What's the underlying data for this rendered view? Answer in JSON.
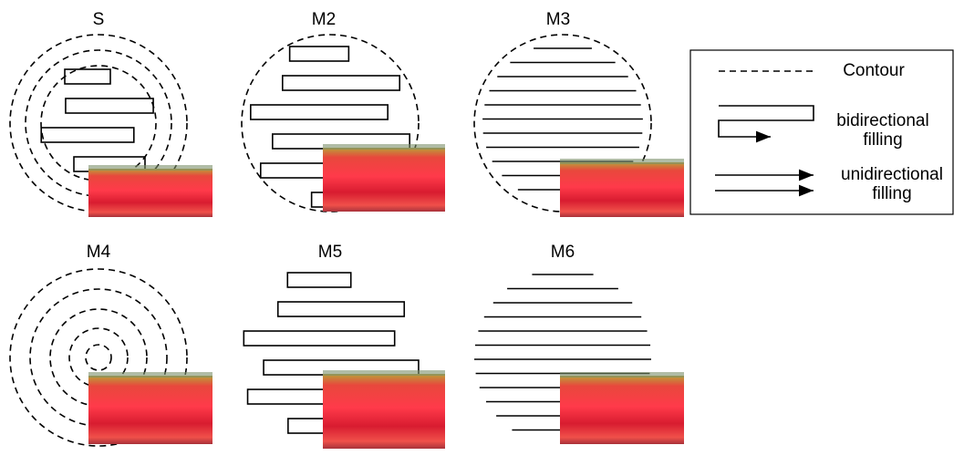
{
  "panels": [
    {
      "label": "S"
    },
    {
      "label": "M2"
    },
    {
      "label": "M3"
    },
    {
      "label": "M4"
    },
    {
      "label": "M5"
    },
    {
      "label": "M6"
    }
  ],
  "legend": [
    {
      "label": "Contour"
    },
    {
      "lines": [
        "bidirectional",
        "filling"
      ]
    },
    {
      "lines": [
        "unidirectional",
        "filling"
      ]
    }
  ]
}
